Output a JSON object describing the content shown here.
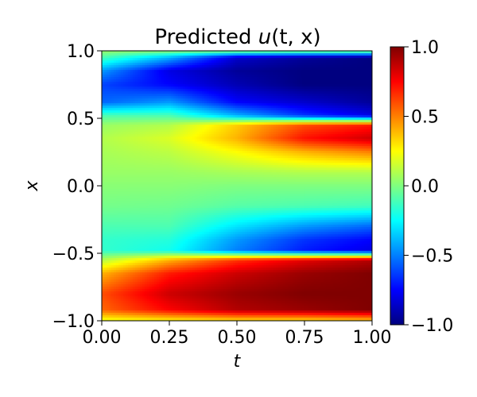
{
  "chart_data": {
    "type": "heatmap",
    "title_prefix": "Predicted ",
    "title_var": "u",
    "title_args": "(t, x)",
    "title": "Predicted u(t, x)",
    "xlabel": "t",
    "ylabel": "x",
    "xlim": [
      0.0,
      1.0
    ],
    "ylim": [
      -1.0,
      1.0
    ],
    "xticks": [
      "0.00",
      "0.25",
      "0.50",
      "0.75",
      "1.00"
    ],
    "yticks": [
      "−1.0",
      "−0.5",
      "0.0",
      "0.5",
      "1.0"
    ],
    "colorbar": {
      "colormap": "jet",
      "range": [
        -1.0,
        1.0
      ],
      "ticks": [
        "−1.0",
        "−0.5",
        "0.0",
        "0.5",
        "1.0"
      ]
    },
    "t_samples": [
      0.0,
      0.25,
      0.5,
      0.75,
      1.0
    ],
    "x_samples": [
      1.0,
      0.95,
      0.85,
      0.75,
      0.62,
      0.52,
      0.45,
      0.35,
      0.25,
      0.1,
      0.0,
      -0.15,
      -0.3,
      -0.4,
      -0.48,
      -0.55,
      -0.65,
      -0.8,
      -0.92,
      -1.0
    ],
    "values": [
      [
        0.05,
        -0.1,
        -0.45,
        -0.62,
        -0.55,
        -0.1,
        0.05,
        0.1,
        0.08,
        0.05,
        0.02,
        -0.02,
        -0.1,
        -0.15,
        -0.15,
        0.1,
        0.4,
        0.6,
        0.55,
        0.2
      ],
      [
        0.05,
        -0.4,
        -0.8,
        -0.75,
        -0.45,
        -0.1,
        0.1,
        0.18,
        0.12,
        0.05,
        0.02,
        -0.03,
        -0.1,
        -0.18,
        -0.22,
        0.4,
        0.7,
        0.85,
        0.75,
        0.25
      ],
      [
        0.05,
        -0.85,
        -0.95,
        -0.9,
        -0.75,
        -0.4,
        0.35,
        0.4,
        0.25,
        0.08,
        0.0,
        -0.08,
        -0.3,
        -0.45,
        -0.5,
        0.65,
        0.85,
        0.95,
        0.9,
        0.3
      ],
      [
        0.05,
        -0.95,
        -1.0,
        -1.0,
        -0.85,
        -0.65,
        0.6,
        0.72,
        0.4,
        0.1,
        0.0,
        -0.1,
        -0.45,
        -0.65,
        -0.7,
        0.8,
        0.95,
        1.0,
        0.95,
        0.3
      ],
      [
        0.05,
        -1.0,
        -1.0,
        -1.0,
        -0.95,
        -0.8,
        0.7,
        0.85,
        0.5,
        0.1,
        0.0,
        -0.12,
        -0.55,
        -0.75,
        -0.8,
        0.9,
        1.0,
        1.0,
        1.0,
        0.35
      ]
    ]
  }
}
